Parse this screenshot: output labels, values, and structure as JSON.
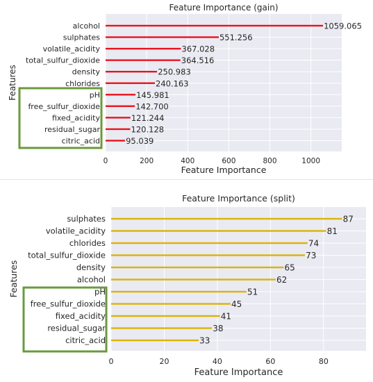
{
  "chart_data": [
    {
      "type": "bar",
      "orientation": "horizontal",
      "title": "Feature Importance (gain)",
      "xlabel": "Feature Importance",
      "ylabel": "Features",
      "categories": [
        "alcohol",
        "sulphates",
        "volatile_acidity",
        "total_sulfur_dioxide",
        "density",
        "chlorides",
        "pH",
        "free_sulfur_dioxide",
        "fixed_acidity",
        "residual_sugar",
        "citric_acid"
      ],
      "values": [
        1059.065,
        551.256,
        367.028,
        364.516,
        250.983,
        240.163,
        145.981,
        142.7,
        121.244,
        120.128,
        95.039
      ],
      "value_labels": [
        "1059.065",
        "551.256",
        "367.028",
        "364.516",
        "250.983",
        "240.163",
        "145.981",
        "142.700",
        "121.244",
        "120.128",
        "95.039"
      ],
      "xticks": [
        "0",
        "200",
        "400",
        "600",
        "800",
        "1000"
      ],
      "xlim": [
        0,
        1150
      ],
      "grid": true,
      "bar_color": "#e8141e",
      "highlight": {
        "categories": [
          "pH",
          "free_sulfur_dioxide",
          "fixed_acidity",
          "residual_sugar",
          "citric_acid"
        ],
        "color": "#6a9a3c"
      }
    },
    {
      "type": "bar",
      "orientation": "horizontal",
      "title": "Feature Importance (split)",
      "xlabel": "Feature Importance",
      "ylabel": "Features",
      "categories": [
        "sulphates",
        "volatile_acidity",
        "chlorides",
        "total_sulfur_dioxide",
        "density",
        "alcohol",
        "pH",
        "free_sulfur_dioxide",
        "fixed_acidity",
        "residual_sugar",
        "citric_acid"
      ],
      "values": [
        87,
        81,
        74,
        73,
        65,
        62,
        51,
        45,
        41,
        38,
        33
      ],
      "value_labels": [
        "87",
        "81",
        "74",
        "73",
        "65",
        "62",
        "51",
        "45",
        "41",
        "38",
        "33"
      ],
      "xticks": [
        "0",
        "20",
        "40",
        "60",
        "80"
      ],
      "xlim": [
        0,
        96
      ],
      "grid": true,
      "bar_color": "#dcb306",
      "highlight": {
        "categories": [
          "pH",
          "free_sulfur_dioxide",
          "fixed_acidity",
          "residual_sugar",
          "citric_acid"
        ],
        "color": "#6a9a3c"
      }
    }
  ]
}
